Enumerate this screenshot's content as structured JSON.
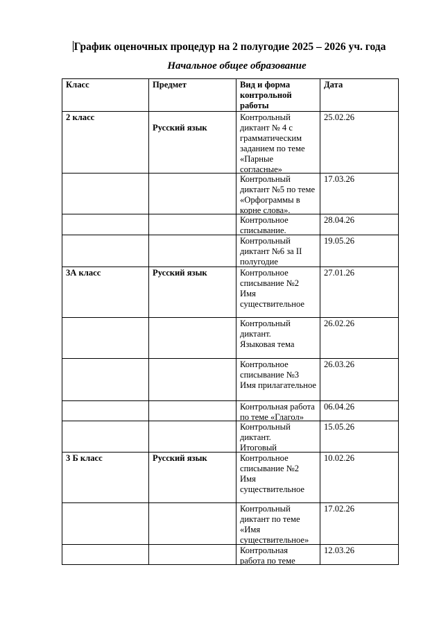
{
  "title": "График оценочных процедур на 2 полугодие 2025 – 2026 уч. года",
  "subtitle": "Начальное общее образование",
  "table": {
    "headers": {
      "class": "Класс",
      "subject": "Предмет",
      "work_lines": [
        "Вид и форма",
        "контрольной",
        "работы"
      ],
      "date": "Дата"
    },
    "rows": [
      {
        "class": "2 класс",
        "subject": "Русский язык",
        "subject_offset": true,
        "work": [
          "Контрольный",
          "диктант № 4 с",
          "грамматическим",
          "заданием  по теме",
          "«Парные",
          "согласные»"
        ],
        "date": "25.02.26"
      },
      {
        "class": "",
        "subject": "",
        "work": [
          "Контрольный",
          "диктант №5 по теме",
          "«Орфограммы в",
          "корне слова»."
        ],
        "date": "17.03.26"
      },
      {
        "class": "",
        "subject": "",
        "work": [
          "Контрольное",
          "списывание."
        ],
        "date": "28.04.26"
      },
      {
        "class": "",
        "subject": "",
        "work": [
          "Контрольный",
          "диктант №6 за II",
          "полугодие"
        ],
        "date": "19.05.26"
      },
      {
        "class": "3А класс",
        "subject": "Русский язык",
        "work": [
          "Контрольное",
          "списывание №2",
          "Имя",
          "существительное"
        ],
        "date": "27.01.26"
      },
      {
        "class": "",
        "subject": "",
        "work": [
          "Контрольный",
          "диктант.",
          "Языковая тема"
        ],
        "date": "26.02.26"
      },
      {
        "class": "",
        "subject": "",
        "work": [
          "Контрольное",
          "списывание №3",
          "Имя прилагательное"
        ],
        "date": "26.03.26"
      },
      {
        "class": "",
        "subject": "",
        "work": [
          "Контрольная работа",
          "по теме «Глагол»"
        ],
        "date": "06.04.26"
      },
      {
        "class": "",
        "subject": "",
        "work": [
          "Контрольный",
          "диктант.",
          "Итоговый"
        ],
        "date": "15.05.26"
      },
      {
        "class": "3 Б класс",
        "subject": "Русский язык",
        "work": [
          "Контрольное",
          "списывание №2",
          "Имя",
          "существительное"
        ],
        "date": "10.02.26"
      },
      {
        "class": "",
        "subject": "",
        "work": [
          "Контрольный",
          "диктант по теме",
          "«Имя",
          "существительное»"
        ],
        "date": "17.02.26"
      },
      {
        "class": "",
        "subject": "",
        "work": [
          "Контрольная",
          "работа по теме"
        ],
        "date": "12.03.26"
      }
    ]
  }
}
